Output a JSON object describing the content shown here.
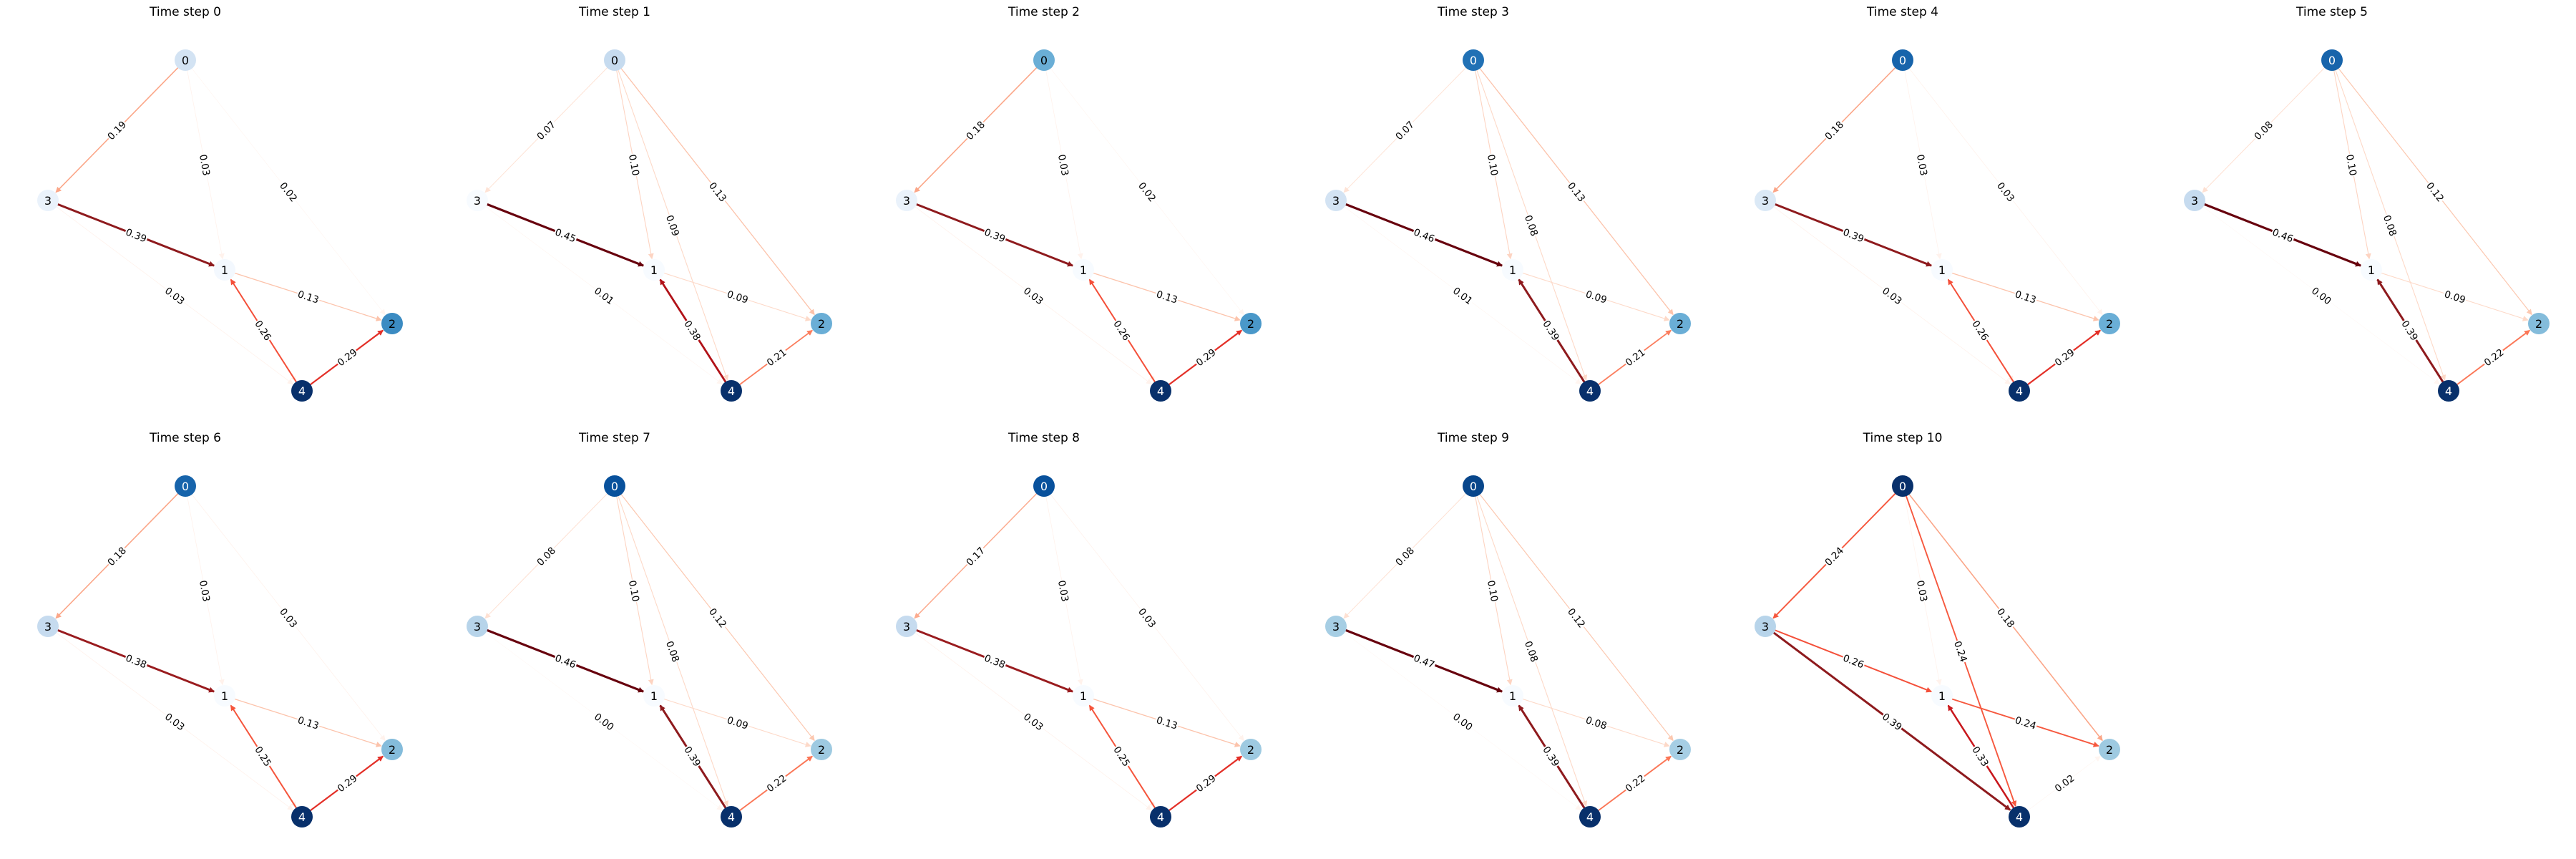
{
  "panels": [
    {
      "title": "Time step 0",
      "nodes": [
        {
          "id": "0",
          "color": "#d3e3f3"
        },
        {
          "id": "1",
          "color": "#f3f8fe"
        },
        {
          "id": "2",
          "color": "#3b8bc2"
        },
        {
          "id": "3",
          "color": "#eaf2fb"
        },
        {
          "id": "4",
          "color": "#08306b"
        }
      ],
      "edges": [
        {
          "source": "0",
          "target": "3",
          "weight": "0.19",
          "color": "#fba688",
          "width": 1.6
        },
        {
          "source": "0",
          "target": "1",
          "weight": "0.03",
          "color": "#fff2ec",
          "width": 0.8
        },
        {
          "source": "0",
          "target": "2",
          "weight": "0.02",
          "color": "#fff5f0",
          "width": 0.6
        },
        {
          "source": "3",
          "target": "1",
          "weight": "0.39",
          "color": "#8e1a1d",
          "width": 3.0
        },
        {
          "source": "3",
          "target": "4",
          "weight": "0.03",
          "color": "#fff2ec",
          "width": 0.8
        },
        {
          "source": "1",
          "target": "2",
          "weight": "0.13",
          "color": "#fcc3ab",
          "width": 1.3
        },
        {
          "source": "1",
          "target": "4",
          "weight": "0.03",
          "color": "#fff2ec",
          "width": 0.8
        },
        {
          "source": "4",
          "target": "1",
          "weight": "0.26",
          "color": "#f44f39",
          "width": 2.0
        },
        {
          "source": "4",
          "target": "2",
          "weight": "0.29",
          "color": "#e32f27",
          "width": 2.2
        }
      ]
    },
    {
      "title": "Time step 1",
      "nodes": [
        {
          "id": "0",
          "color": "#c6dbef"
        },
        {
          "id": "1",
          "color": "#f7fbff"
        },
        {
          "id": "2",
          "color": "#6aaed6"
        },
        {
          "id": "3",
          "color": "#f7fbff"
        },
        {
          "id": "4",
          "color": "#08306b"
        }
      ],
      "edges": [
        {
          "source": "0",
          "target": "3",
          "weight": "0.07",
          "color": "#fee3d6",
          "width": 1.0
        },
        {
          "source": "0",
          "target": "1",
          "weight": "0.10",
          "color": "#fdd4c2",
          "width": 1.1
        },
        {
          "source": "0",
          "target": "4",
          "weight": "0.09",
          "color": "#fdd9c8",
          "width": 1.1
        },
        {
          "source": "0",
          "target": "2",
          "weight": "0.13",
          "color": "#fcc3ab",
          "width": 1.3
        },
        {
          "source": "3",
          "target": "1",
          "weight": "0.45",
          "color": "#67000d",
          "width": 3.2
        },
        {
          "source": "3",
          "target": "4",
          "weight": "0.01",
          "color": "#fff5f0",
          "width": 0.6
        },
        {
          "source": "1",
          "target": "2",
          "weight": "0.09",
          "color": "#fdd9c8",
          "width": 1.1
        },
        {
          "source": "4",
          "target": "1",
          "weight": "0.38",
          "color": "#b11218",
          "width": 2.8
        },
        {
          "source": "4",
          "target": "2",
          "weight": "0.21",
          "color": "#fb7d5d",
          "width": 1.8
        }
      ]
    },
    {
      "title": "Time step 2",
      "nodes": [
        {
          "id": "0",
          "color": "#6aaed6"
        },
        {
          "id": "1",
          "color": "#f7fbff"
        },
        {
          "id": "2",
          "color": "#4a98c9"
        },
        {
          "id": "3",
          "color": "#eaf2fb"
        },
        {
          "id": "4",
          "color": "#08306b"
        }
      ],
      "edges": [
        {
          "source": "0",
          "target": "3",
          "weight": "0.18",
          "color": "#fba688",
          "width": 1.6
        },
        {
          "source": "0",
          "target": "1",
          "weight": "0.03",
          "color": "#fff2ec",
          "width": 0.8
        },
        {
          "source": "0",
          "target": "2",
          "weight": "0.02",
          "color": "#fff5f0",
          "width": 0.6
        },
        {
          "source": "3",
          "target": "1",
          "weight": "0.39",
          "color": "#8e1a1d",
          "width": 3.0
        },
        {
          "source": "3",
          "target": "4",
          "weight": "0.03",
          "color": "#fff2ec",
          "width": 0.8
        },
        {
          "source": "1",
          "target": "2",
          "weight": "0.13",
          "color": "#fcc3ab",
          "width": 1.3
        },
        {
          "source": "1",
          "target": "4",
          "weight": "0.03",
          "color": "#fff2ec",
          "width": 0.8
        },
        {
          "source": "4",
          "target": "1",
          "weight": "0.26",
          "color": "#f44f39",
          "width": 2.0
        },
        {
          "source": "4",
          "target": "2",
          "weight": "0.29",
          "color": "#e32f27",
          "width": 2.2
        }
      ]
    },
    {
      "title": "Time step 3",
      "nodes": [
        {
          "id": "0",
          "color": "#2171b5"
        },
        {
          "id": "1",
          "color": "#f7fbff"
        },
        {
          "id": "2",
          "color": "#6aaed6"
        },
        {
          "id": "3",
          "color": "#d3e3f3"
        },
        {
          "id": "4",
          "color": "#08306b"
        }
      ],
      "edges": [
        {
          "source": "0",
          "target": "3",
          "weight": "0.07",
          "color": "#fee3d6",
          "width": 1.0
        },
        {
          "source": "0",
          "target": "1",
          "weight": "0.10",
          "color": "#fdd4c2",
          "width": 1.1
        },
        {
          "source": "0",
          "target": "4",
          "weight": "0.08",
          "color": "#fdd9c8",
          "width": 1.1
        },
        {
          "source": "0",
          "target": "2",
          "weight": "0.13",
          "color": "#fcc3ab",
          "width": 1.3
        },
        {
          "source": "3",
          "target": "1",
          "weight": "0.46",
          "color": "#67000d",
          "width": 3.2
        },
        {
          "source": "3",
          "target": "4",
          "weight": "0.01",
          "color": "#fff5f0",
          "width": 0.6
        },
        {
          "source": "1",
          "target": "2",
          "weight": "0.09",
          "color": "#fdd9c8",
          "width": 1.1
        },
        {
          "source": "4",
          "target": "1",
          "weight": "0.39",
          "color": "#8e1a1d",
          "width": 3.0
        },
        {
          "source": "4",
          "target": "2",
          "weight": "0.21",
          "color": "#fb7d5d",
          "width": 1.8
        }
      ]
    },
    {
      "title": "Time step 4",
      "nodes": [
        {
          "id": "0",
          "color": "#1764ab"
        },
        {
          "id": "1",
          "color": "#f7fbff"
        },
        {
          "id": "2",
          "color": "#6aaed6"
        },
        {
          "id": "3",
          "color": "#dbe9f6"
        },
        {
          "id": "4",
          "color": "#08306b"
        }
      ],
      "edges": [
        {
          "source": "0",
          "target": "3",
          "weight": "0.18",
          "color": "#fba688",
          "width": 1.6
        },
        {
          "source": "0",
          "target": "1",
          "weight": "0.03",
          "color": "#fff2ec",
          "width": 0.8
        },
        {
          "source": "0",
          "target": "2",
          "weight": "0.03",
          "color": "#fff2ec",
          "width": 0.8
        },
        {
          "source": "3",
          "target": "1",
          "weight": "0.39",
          "color": "#8e1a1d",
          "width": 3.0
        },
        {
          "source": "3",
          "target": "4",
          "weight": "0.03",
          "color": "#fff2ec",
          "width": 0.8
        },
        {
          "source": "1",
          "target": "2",
          "weight": "0.13",
          "color": "#fcc3ab",
          "width": 1.3
        },
        {
          "source": "1",
          "target": "4",
          "weight": "0.04",
          "color": "#ffede5",
          "width": 0.9
        },
        {
          "source": "4",
          "target": "1",
          "weight": "0.26",
          "color": "#f44f39",
          "width": 2.0
        },
        {
          "source": "4",
          "target": "2",
          "weight": "0.29",
          "color": "#e32f27",
          "width": 2.2
        }
      ]
    },
    {
      "title": "Time step 5",
      "nodes": [
        {
          "id": "0",
          "color": "#1764ab"
        },
        {
          "id": "1",
          "color": "#f7fbff"
        },
        {
          "id": "2",
          "color": "#84bcdb"
        },
        {
          "id": "3",
          "color": "#c6dbef"
        },
        {
          "id": "4",
          "color": "#08306b"
        }
      ],
      "edges": [
        {
          "source": "0",
          "target": "3",
          "weight": "0.08",
          "color": "#fee0d2",
          "width": 1.0
        },
        {
          "source": "0",
          "target": "1",
          "weight": "0.10",
          "color": "#fdd4c2",
          "width": 1.1
        },
        {
          "source": "0",
          "target": "4",
          "weight": "0.08",
          "color": "#fdd9c8",
          "width": 1.1
        },
        {
          "source": "0",
          "target": "2",
          "weight": "0.12",
          "color": "#fcc8b0",
          "width": 1.2
        },
        {
          "source": "3",
          "target": "1",
          "weight": "0.46",
          "color": "#67000d",
          "width": 3.2
        },
        {
          "source": "3",
          "target": "4",
          "weight": "0.00",
          "color": "#fff5f0",
          "width": 0.5
        },
        {
          "source": "1",
          "target": "2",
          "weight": "0.09",
          "color": "#fdd9c8",
          "width": 1.1
        },
        {
          "source": "4",
          "target": "1",
          "weight": "0.39",
          "color": "#8e1a1d",
          "width": 3.0
        },
        {
          "source": "4",
          "target": "2",
          "weight": "0.22",
          "color": "#fb7656",
          "width": 1.9
        }
      ]
    },
    {
      "title": "Time step 6",
      "nodes": [
        {
          "id": "0",
          "color": "#1764ab"
        },
        {
          "id": "1",
          "color": "#f7fbff"
        },
        {
          "id": "2",
          "color": "#84bcdb"
        },
        {
          "id": "3",
          "color": "#c6dbef"
        },
        {
          "id": "4",
          "color": "#08306b"
        }
      ],
      "edges": [
        {
          "source": "0",
          "target": "3",
          "weight": "0.18",
          "color": "#fba688",
          "width": 1.6
        },
        {
          "source": "0",
          "target": "1",
          "weight": "0.03",
          "color": "#fff2ec",
          "width": 0.8
        },
        {
          "source": "0",
          "target": "2",
          "weight": "0.03",
          "color": "#fff2ec",
          "width": 0.8
        },
        {
          "source": "3",
          "target": "1",
          "weight": "0.38",
          "color": "#991b1e",
          "width": 2.9
        },
        {
          "source": "3",
          "target": "4",
          "weight": "0.03",
          "color": "#fff2ec",
          "width": 0.8
        },
        {
          "source": "1",
          "target": "2",
          "weight": "0.13",
          "color": "#fcc3ab",
          "width": 1.3
        },
        {
          "source": "1",
          "target": "4",
          "weight": "0.04",
          "color": "#ffede5",
          "width": 0.9
        },
        {
          "source": "4",
          "target": "1",
          "weight": "0.25",
          "color": "#f5553c",
          "width": 2.0
        },
        {
          "source": "4",
          "target": "2",
          "weight": "0.29",
          "color": "#e32f27",
          "width": 2.2
        }
      ]
    },
    {
      "title": "Time step 7",
      "nodes": [
        {
          "id": "0",
          "color": "#08519c"
        },
        {
          "id": "1",
          "color": "#f7fbff"
        },
        {
          "id": "2",
          "color": "#9ecae1"
        },
        {
          "id": "3",
          "color": "#b7d4ea"
        },
        {
          "id": "4",
          "color": "#08306b"
        }
      ],
      "edges": [
        {
          "source": "0",
          "target": "3",
          "weight": "0.08",
          "color": "#fee0d2",
          "width": 1.0
        },
        {
          "source": "0",
          "target": "1",
          "weight": "0.10",
          "color": "#fdd4c2",
          "width": 1.1
        },
        {
          "source": "0",
          "target": "4",
          "weight": "0.08",
          "color": "#fdd9c8",
          "width": 1.1
        },
        {
          "source": "0",
          "target": "2",
          "weight": "0.12",
          "color": "#fcc8b0",
          "width": 1.2
        },
        {
          "source": "3",
          "target": "1",
          "weight": "0.46",
          "color": "#67000d",
          "width": 3.2
        },
        {
          "source": "3",
          "target": "4",
          "weight": "0.00",
          "color": "#fff5f0",
          "width": 0.5
        },
        {
          "source": "1",
          "target": "2",
          "weight": "0.09",
          "color": "#fdd9c8",
          "width": 1.1
        },
        {
          "source": "4",
          "target": "1",
          "weight": "0.39",
          "color": "#8e1a1d",
          "width": 3.0
        },
        {
          "source": "4",
          "target": "2",
          "weight": "0.22",
          "color": "#fb7656",
          "width": 1.9
        }
      ]
    },
    {
      "title": "Time step 8",
      "nodes": [
        {
          "id": "0",
          "color": "#08519c"
        },
        {
          "id": "1",
          "color": "#f7fbff"
        },
        {
          "id": "2",
          "color": "#9ecae1"
        },
        {
          "id": "3",
          "color": "#c6dbef"
        },
        {
          "id": "4",
          "color": "#08306b"
        }
      ],
      "edges": [
        {
          "source": "0",
          "target": "3",
          "weight": "0.17",
          "color": "#fcab8f",
          "width": 1.5
        },
        {
          "source": "0",
          "target": "1",
          "weight": "0.03",
          "color": "#fff2ec",
          "width": 0.8
        },
        {
          "source": "0",
          "target": "2",
          "weight": "0.03",
          "color": "#fff2ec",
          "width": 0.8
        },
        {
          "source": "3",
          "target": "1",
          "weight": "0.38",
          "color": "#991b1e",
          "width": 2.9
        },
        {
          "source": "3",
          "target": "4",
          "weight": "0.03",
          "color": "#fff2ec",
          "width": 0.8
        },
        {
          "source": "1",
          "target": "2",
          "weight": "0.13",
          "color": "#fcc3ab",
          "width": 1.3
        },
        {
          "source": "1",
          "target": "4",
          "weight": "0.04",
          "color": "#ffede5",
          "width": 0.9
        },
        {
          "source": "4",
          "target": "1",
          "weight": "0.25",
          "color": "#f5553c",
          "width": 2.0
        },
        {
          "source": "4",
          "target": "2",
          "weight": "0.29",
          "color": "#e32f27",
          "width": 2.2
        }
      ]
    },
    {
      "title": "Time step 9",
      "nodes": [
        {
          "id": "0",
          "color": "#08468b"
        },
        {
          "id": "1",
          "color": "#f7fbff"
        },
        {
          "id": "2",
          "color": "#a6cee4"
        },
        {
          "id": "3",
          "color": "#a6cee4"
        },
        {
          "id": "4",
          "color": "#08306b"
        }
      ],
      "edges": [
        {
          "source": "0",
          "target": "3",
          "weight": "0.08",
          "color": "#fee0d2",
          "width": 1.0
        },
        {
          "source": "0",
          "target": "1",
          "weight": "0.10",
          "color": "#fdd4c2",
          "width": 1.1
        },
        {
          "source": "0",
          "target": "4",
          "weight": "0.08",
          "color": "#fdd9c8",
          "width": 1.1
        },
        {
          "source": "0",
          "target": "2",
          "weight": "0.12",
          "color": "#fcc8b0",
          "width": 1.2
        },
        {
          "source": "3",
          "target": "1",
          "weight": "0.47",
          "color": "#67000d",
          "width": 3.2
        },
        {
          "source": "3",
          "target": "4",
          "weight": "0.00",
          "color": "#fff5f0",
          "width": 0.5
        },
        {
          "source": "1",
          "target": "2",
          "weight": "0.08",
          "color": "#fdd9c8",
          "width": 1.1
        },
        {
          "source": "4",
          "target": "1",
          "weight": "0.39",
          "color": "#8e1a1d",
          "width": 3.0
        },
        {
          "source": "4",
          "target": "2",
          "weight": "0.22",
          "color": "#fb7656",
          "width": 1.9
        }
      ]
    },
    {
      "title": "Time step 10",
      "nodes": [
        {
          "id": "0",
          "color": "#08306b"
        },
        {
          "id": "1",
          "color": "#f7fbff"
        },
        {
          "id": "2",
          "color": "#9ecae1"
        },
        {
          "id": "3",
          "color": "#b7d4ea"
        },
        {
          "id": "4",
          "color": "#08306b"
        }
      ],
      "edges": [
        {
          "source": "0",
          "target": "3",
          "weight": "0.24",
          "color": "#f6583e",
          "width": 1.9
        },
        {
          "source": "0",
          "target": "1",
          "weight": "0.03",
          "color": "#fff2ec",
          "width": 0.8
        },
        {
          "source": "0",
          "target": "4",
          "weight": "0.24",
          "color": "#f6583e",
          "width": 1.9
        },
        {
          "source": "0",
          "target": "2",
          "weight": "0.18",
          "color": "#fba688",
          "width": 1.6
        },
        {
          "source": "3",
          "target": "1",
          "weight": "0.26",
          "color": "#f44f39",
          "width": 2.0
        },
        {
          "source": "3",
          "target": "4",
          "weight": "0.39",
          "color": "#8e1a1d",
          "width": 3.0
        },
        {
          "source": "1",
          "target": "2",
          "weight": "0.24",
          "color": "#f6583e",
          "width": 1.9
        },
        {
          "source": "4",
          "target": "1",
          "weight": "0.33",
          "color": "#c8171c",
          "width": 2.5
        },
        {
          "source": "4",
          "target": "2",
          "weight": "0.02",
          "color": "#fff5f0",
          "width": 0.6
        }
      ]
    }
  ]
}
